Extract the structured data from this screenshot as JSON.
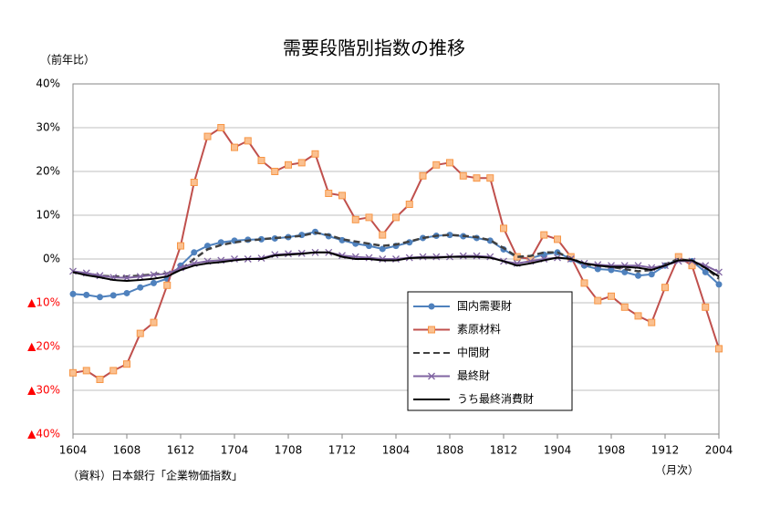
{
  "chart_data": {
    "type": "line",
    "title": "需要段階別指数の推移",
    "y_axis_label": "（前年比）",
    "x_axis_label": "（月次）",
    "source": "（資料）日本銀行「企業物価指数」",
    "categories": [
      "1604",
      null,
      null,
      null,
      "1608",
      null,
      null,
      null,
      "1612",
      null,
      null,
      null,
      "1704",
      null,
      null,
      null,
      "1708",
      null,
      null,
      null,
      "1712",
      null,
      null,
      null,
      "1804",
      null,
      null,
      null,
      "1808",
      null,
      null,
      null,
      "1812",
      null,
      null,
      null,
      "1904",
      null,
      null,
      null,
      "1908",
      null,
      null,
      null,
      "1912",
      null,
      null,
      null,
      "2004"
    ],
    "ylim": [
      -40,
      40
    ],
    "yticks": [
      {
        "value": 40,
        "label": "40%"
      },
      {
        "value": 30,
        "label": "30%"
      },
      {
        "value": 20,
        "label": "20%"
      },
      {
        "value": 10,
        "label": "10%"
      },
      {
        "value": 0,
        "label": "0%"
      },
      {
        "value": -10,
        "label": "▲10%"
      },
      {
        "value": -20,
        "label": "▲20%"
      },
      {
        "value": -30,
        "label": "▲30%"
      },
      {
        "value": -40,
        "label": "▲40%"
      }
    ],
    "grid": true,
    "legend": "lower-right",
    "negative_label_color": "#ff0000",
    "series": [
      {
        "name": "国内需要財",
        "color": "#4f81bd",
        "marker": "circle",
        "dash": false,
        "values": [
          -8,
          -8.2,
          -8.7,
          -8.3,
          -7.8,
          -6.5,
          -5.5,
          -4.5,
          -1.5,
          1.5,
          3,
          3.8,
          4.2,
          4.4,
          4.5,
          4.7,
          5,
          5.5,
          6.2,
          5.2,
          4.3,
          3.5,
          3,
          2.3,
          3,
          3.8,
          4.8,
          5.3,
          5.5,
          5.2,
          4.8,
          4.2,
          2.2,
          0.3,
          0.2,
          1,
          1.5,
          0,
          -1.5,
          -2.3,
          -2.5,
          -3,
          -3.8,
          -3.5,
          -1.5,
          0,
          -0.5,
          -3,
          -5.8
        ]
      },
      {
        "name": "素原材料",
        "color": "#c0504d",
        "marker": "square",
        "dash": false,
        "values": [
          -26,
          -25.5,
          -27.5,
          -25.5,
          -24,
          -17,
          -14.5,
          -6,
          3,
          17.5,
          28,
          30,
          25.5,
          27,
          22.5,
          20,
          21.5,
          22,
          24,
          15,
          14.5,
          9,
          9.5,
          5.5,
          9.5,
          12.5,
          19,
          21.5,
          22,
          19,
          18.5,
          18.5,
          7,
          0.5,
          0,
          5.5,
          4.5,
          0.5,
          -5.5,
          -9.5,
          -8.5,
          -11,
          -13,
          -14.5,
          -6.5,
          0.5,
          -1.5,
          -11,
          -20.5
        ]
      },
      {
        "name": "中間財",
        "color": "#404040",
        "marker": null,
        "dash": true,
        "values": [
          -3,
          -3.3,
          -3.8,
          -4,
          -4,
          -3.8,
          -3.5,
          -3.3,
          -2.5,
          0,
          2.2,
          3.2,
          3.8,
          4.2,
          4.5,
          4.8,
          5,
          5.3,
          6,
          5.5,
          4.5,
          4,
          3.5,
          3,
          3.3,
          4,
          4.8,
          5.3,
          5.5,
          5.3,
          5,
          4.3,
          2.5,
          0.5,
          0.7,
          1.5,
          1.5,
          0.2,
          -1.2,
          -1.5,
          -1.8,
          -2.3,
          -2.8,
          -2.5,
          -1.2,
          0,
          -0.5,
          -2,
          -4.5
        ]
      },
      {
        "name": "最終財",
        "color": "#8064a2",
        "marker": "x",
        "dash": false,
        "values": [
          -2.8,
          -3.2,
          -3.8,
          -4.2,
          -4.3,
          -4,
          -3.6,
          -3.4,
          -2,
          -1,
          -0.5,
          -0.3,
          0,
          0,
          0.2,
          1,
          1.2,
          1.3,
          1.5,
          1.5,
          0.8,
          0.5,
          0.3,
          0,
          0,
          0.3,
          0.5,
          0.5,
          0.5,
          0.7,
          0.7,
          0.5,
          -0.5,
          -1,
          -0.5,
          0,
          0.3,
          0,
          -1,
          -1.3,
          -1.5,
          -1.5,
          -1.5,
          -2,
          -1.5,
          -0.5,
          -0.5,
          -1.5,
          -3
        ]
      },
      {
        "name": "うち最終消費財",
        "color": "#000000",
        "marker": null,
        "dash": false,
        "values": [
          -3,
          -3.7,
          -4.2,
          -4.8,
          -5,
          -4.8,
          -4.5,
          -4,
          -2.5,
          -1.5,
          -1,
          -0.7,
          -0.3,
          0,
          0,
          0.8,
          1,
          1.2,
          1.5,
          1.5,
          0.5,
          0,
          0,
          -0.3,
          -0.3,
          0.2,
          0.3,
          0.3,
          0.5,
          0.5,
          0.5,
          0.3,
          -0.5,
          -1.5,
          -1,
          -0.3,
          0.3,
          0,
          -1,
          -1.5,
          -1.8,
          -1.8,
          -2,
          -2.5,
          -1.5,
          -0.3,
          -0.3,
          -2,
          -4
        ]
      }
    ]
  }
}
